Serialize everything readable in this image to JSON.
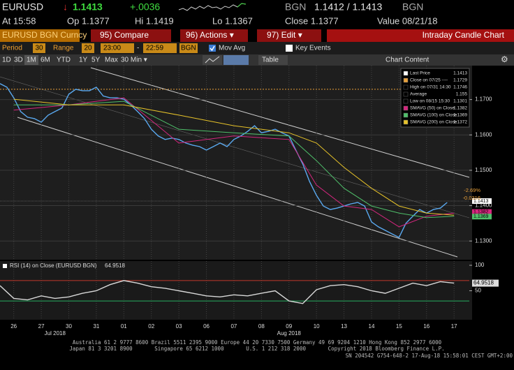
{
  "header": {
    "ticker": "EURUSD",
    "arrow": "↓",
    "last": "1.1413",
    "change": "+.0036",
    "source": "BGN",
    "bid_ask": "1.1412 / 1.1413",
    "source2": "BGN"
  },
  "quote": {
    "at": "At 15:58",
    "open": "Op 1.1377",
    "high": "Hi 1.1419",
    "low": "Lo 1.1367",
    "close": "Close 1.1377",
    "value": "Value 08/21/18"
  },
  "toolbar": {
    "security": "EURUSD BGN Curncy",
    "compare": "95) Compare",
    "actions": "96) Actions ▾",
    "edit": "97) Edit ▾",
    "title": "Intraday Candle Chart"
  },
  "settings": {
    "period_label": "Period",
    "period": "30",
    "range_label": "Range",
    "range": "20",
    "from": "23:00",
    "dash": "-",
    "to": "22:59",
    "source": "BGN",
    "mov_avg": "Mov Avg",
    "key_events": "Key Events"
  },
  "ranges": [
    "1D",
    "3D",
    "1M",
    "6M",
    "YTD",
    "1Y",
    "5Y",
    "Max",
    "30 Min ▾"
  ],
  "table": "Table",
  "chart_content": "Chart Content",
  "chart_data": [
    {
      "type": "line",
      "xlim": [
        -0.5,
        16.3
      ],
      "xticks": [
        {
          "value": 0,
          "label": "26"
        },
        {
          "value": 1,
          "label": "27"
        },
        {
          "value": 2,
          "label": "30"
        },
        {
          "value": 3,
          "label": "31"
        },
        {
          "value": 4,
          "label": "01"
        },
        {
          "value": 5,
          "label": "02"
        },
        {
          "value": 6,
          "label": "03"
        },
        {
          "value": 7,
          "label": "06"
        },
        {
          "value": 8,
          "label": "07"
        },
        {
          "value": 9,
          "label": "08"
        },
        {
          "value": 10,
          "label": "09"
        },
        {
          "value": 11,
          "label": "10"
        },
        {
          "value": 12,
          "label": "13"
        },
        {
          "value": 13,
          "label": "14"
        },
        {
          "value": 14,
          "label": "15"
        },
        {
          "value": 15,
          "label": "16"
        },
        {
          "value": 16,
          "label": "17"
        }
      ],
      "month_labels": [
        {
          "value": 1.5,
          "label": "Jul 2018"
        },
        {
          "value": 10,
          "label": "Aug 2018"
        }
      ],
      "ylim": [
        1.1255,
        1.179
      ],
      "yticks": [
        {
          "value": 1.13,
          "label": "1.1300"
        },
        {
          "value": 1.14,
          "label": "1.1400"
        },
        {
          "value": 1.15,
          "label": "1.1500"
        },
        {
          "value": 1.16,
          "label": "1.1600"
        },
        {
          "value": 1.17,
          "label": "1.1700"
        }
      ],
      "grid": true,
      "series": [
        {
          "name": "Last Price",
          "color": "#5aa9f0",
          "x": [
            -0.5,
            -0.25,
            0,
            0.25,
            0.5,
            0.75,
            1,
            1.25,
            1.5,
            1.75,
            2,
            2.25,
            2.5,
            2.75,
            3,
            3.25,
            3.5,
            3.75,
            4,
            4.25,
            4.5,
            4.75,
            5,
            5.25,
            5.5,
            5.75,
            6,
            6.25,
            6.5,
            6.75,
            7,
            7.25,
            7.5,
            7.75,
            8,
            8.25,
            8.5,
            8.75,
            9,
            9.25,
            9.5,
            9.75,
            10,
            10.25,
            10.5,
            10.75,
            11,
            11.25,
            11.5,
            11.75,
            12,
            12.25,
            12.5,
            12.75,
            13,
            13.25,
            13.5,
            13.75,
            14,
            14.25,
            14.5,
            14.75,
            15,
            15.25,
            15.5,
            15.75
          ],
          "values": [
            1.1745,
            1.1735,
            1.1705,
            1.1666,
            1.165,
            1.1646,
            1.1636,
            1.1656,
            1.1666,
            1.1676,
            1.1715,
            1.1729,
            1.1725,
            1.1725,
            1.1735,
            1.171,
            1.1705,
            1.1705,
            1.1701,
            1.1685,
            1.1666,
            1.1646,
            1.1616,
            1.1597,
            1.1587,
            1.1591,
            1.1587,
            1.1577,
            1.1571,
            1.1567,
            1.1557,
            1.1567,
            1.1577,
            1.1567,
            1.1587,
            1.1597,
            1.161,
            1.1626,
            1.1606,
            1.161,
            1.1616,
            1.1606,
            1.1597,
            1.1557,
            1.1518,
            1.1468,
            1.1429,
            1.1399,
            1.1389,
            1.1393,
            1.1399,
            1.1405,
            1.1409,
            1.1399,
            1.1354,
            1.134,
            1.133,
            1.132,
            1.131,
            1.135,
            1.137,
            1.1389,
            1.1379,
            1.1389,
            1.1393,
            1.1409
          ]
        },
        {
          "name": "SMAVG (50)",
          "color": "#d6267f",
          "x": [
            0,
            2,
            4,
            6,
            8,
            10,
            11,
            12,
            13,
            14,
            15,
            16
          ],
          "values": [
            1.167,
            1.1685,
            1.1705,
            1.1577,
            1.1597,
            1.1587,
            1.1458,
            1.1399,
            1.1389,
            1.134,
            1.137,
            1.1379
          ]
        },
        {
          "name": "SMAVG (100)",
          "color": "#4fbf6a",
          "x": [
            0,
            2,
            4,
            6,
            8,
            10,
            11,
            12,
            13,
            14,
            15,
            16
          ],
          "values": [
            1.1685,
            1.1685,
            1.1695,
            1.1616,
            1.1606,
            1.1597,
            1.1527,
            1.1449,
            1.1399,
            1.1379,
            1.1366,
            1.137
          ]
        },
        {
          "name": "SMAVG (200)",
          "color": "#e6c229",
          "x": [
            0,
            2,
            4,
            6,
            8,
            10,
            11,
            12,
            13,
            14,
            15,
            16
          ],
          "values": [
            1.1701,
            1.1685,
            1.1685,
            1.1656,
            1.1626,
            1.1606,
            1.1577,
            1.1508,
            1.1449,
            1.1399,
            1.1379,
            1.1373
          ]
        }
      ],
      "legend": [
        {
          "name": "Last Price",
          "value": 1.1413,
          "color": "#ffffff"
        },
        {
          "name": "Close on 07/25 ----",
          "value": 1.1729,
          "color": "#e8a03a"
        },
        {
          "name": "High on 07/31 14:30",
          "value": 1.1746,
          "color": "#000000"
        },
        {
          "name": "Average",
          "value": 1.155,
          "color": "#000000"
        },
        {
          "name": "Low on 08/15 15:30",
          "value": 1.1301,
          "color": "#000000"
        },
        {
          "name": "SMAVG (50) on Close",
          "value": 1.1382,
          "color": "#d6267f"
        },
        {
          "name": "SMAVG (100) on Close",
          "value": 1.1369,
          "color": "#4fbf6a"
        },
        {
          "name": "SMAVG (200) on Close",
          "value": 1.1372,
          "color": "#e6c229"
        }
      ],
      "annotations": [
        "-2.69%",
        "-0.0316"
      ]
    },
    {
      "type": "line",
      "title": "RSI (14) on Close (EURUSD BGN)",
      "last": 64.9518,
      "xlim": [
        -0.5,
        16.3
      ],
      "ylim": [
        0,
        100
      ],
      "yticks": [
        50,
        100
      ],
      "levels": [
        {
          "value": 70,
          "color": "#c0392b"
        },
        {
          "value": 30,
          "color": "#27ae60"
        }
      ],
      "series": [
        {
          "name": "RSI (14)",
          "color": "#d8d8d8",
          "x": [
            -0.5,
            0,
            0.5,
            1,
            1.5,
            2,
            2.5,
            3,
            3.5,
            4,
            4.5,
            5,
            5.5,
            6,
            6.5,
            7,
            7.5,
            8,
            8.5,
            9,
            9.5,
            10,
            10.5,
            11,
            11.5,
            12,
            12.5,
            13,
            13.5,
            14,
            14.5,
            15,
            15.5,
            16
          ],
          "values": [
            60,
            35,
            32,
            40,
            35,
            38,
            45,
            50,
            62,
            70,
            65,
            58,
            55,
            50,
            45,
            40,
            38,
            42,
            40,
            45,
            50,
            30,
            25,
            52,
            60,
            62,
            58,
            50,
            45,
            55,
            65,
            60,
            68,
            65
          ]
        }
      ]
    }
  ],
  "footer": [
    "Australia 61 2 9777 8600 Brazil 5511 2395 9000 Europe 44 20 7330 7500 Germany 49 69 9204 1210 Hong Kong 852 2977 6000",
    "Japan 81 3 3201 8900       Singapore 65 6212 1000       U.S. 1 212 318 2000       Copyright 2018 Bloomberg Finance L.P.",
    "SN 204542 G754-648-2 17-Aug-18 15:58:01 CEST GMT+2:00"
  ]
}
